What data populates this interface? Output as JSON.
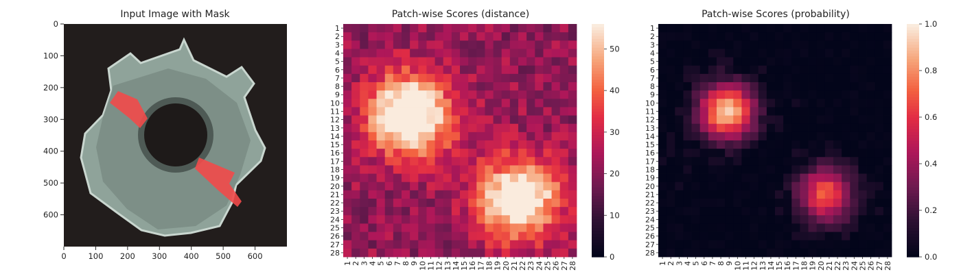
{
  "chart_data": [
    {
      "type": "image",
      "title": "Input Image with Mask",
      "xlim": [
        0,
        700
      ],
      "ylim": [
        700,
        0
      ],
      "xticks": [
        0,
        100,
        200,
        300,
        400,
        500,
        600
      ],
      "yticks": [
        0,
        100,
        200,
        300,
        400,
        500,
        600
      ],
      "colors": {
        "background": "#221d1c",
        "part": "#8a9a92",
        "mask": "#f03b3b"
      }
    },
    {
      "type": "heatmap",
      "title": "Patch-wise Scores (distance)",
      "rows": 28,
      "cols": 28,
      "row_labels": [
        "1",
        "2",
        "3",
        "4",
        "5",
        "6",
        "7",
        "8",
        "9",
        "10",
        "11",
        "12",
        "13",
        "14",
        "15",
        "16",
        "17",
        "18",
        "19",
        "20",
        "21",
        "22",
        "23",
        "24",
        "25",
        "26",
        "27",
        "28"
      ],
      "col_labels": [
        "1",
        "2",
        "3",
        "4",
        "5",
        "6",
        "7",
        "8",
        "9",
        "10",
        "11",
        "12",
        "13",
        "14",
        "15",
        "16",
        "17",
        "18",
        "19",
        "20",
        "21",
        "22",
        "23",
        "24",
        "25",
        "26",
        "27",
        "28"
      ],
      "vmin": 0,
      "vmax": 56,
      "colorbar_ticks": [
        0,
        10,
        20,
        30,
        40,
        50
      ],
      "blobs": [
        {
          "row": 11.5,
          "col": 8.5,
          "peak": 55
        },
        {
          "row": 21.5,
          "col": 21.5,
          "peak": 50
        }
      ],
      "baseline": 22
    },
    {
      "type": "heatmap",
      "title": "Patch-wise Scores (probability)",
      "rows": 28,
      "cols": 28,
      "row_labels": [
        "1",
        "2",
        "3",
        "4",
        "5",
        "6",
        "7",
        "8",
        "9",
        "10",
        "11",
        "12",
        "13",
        "14",
        "15",
        "16",
        "17",
        "18",
        "19",
        "20",
        "21",
        "22",
        "23",
        "24",
        "25",
        "26",
        "27",
        "28"
      ],
      "col_labels": [
        "1",
        "2",
        "3",
        "4",
        "5",
        "6",
        "7",
        "8",
        "9",
        "10",
        "11",
        "12",
        "13",
        "14",
        "15",
        "16",
        "17",
        "18",
        "19",
        "20",
        "21",
        "22",
        "23",
        "24",
        "25",
        "26",
        "27",
        "28"
      ],
      "vmin": 0,
      "vmax": 1,
      "colorbar_ticks": [
        "0.0",
        "0.2",
        "0.4",
        "0.6",
        "0.8",
        "1.0"
      ],
      "blobs": [
        {
          "row": 11,
          "col": 8.7,
          "peak": 0.92
        },
        {
          "row": 21,
          "col": 20.6,
          "peak": 0.68
        }
      ],
      "baseline": 0
    }
  ]
}
